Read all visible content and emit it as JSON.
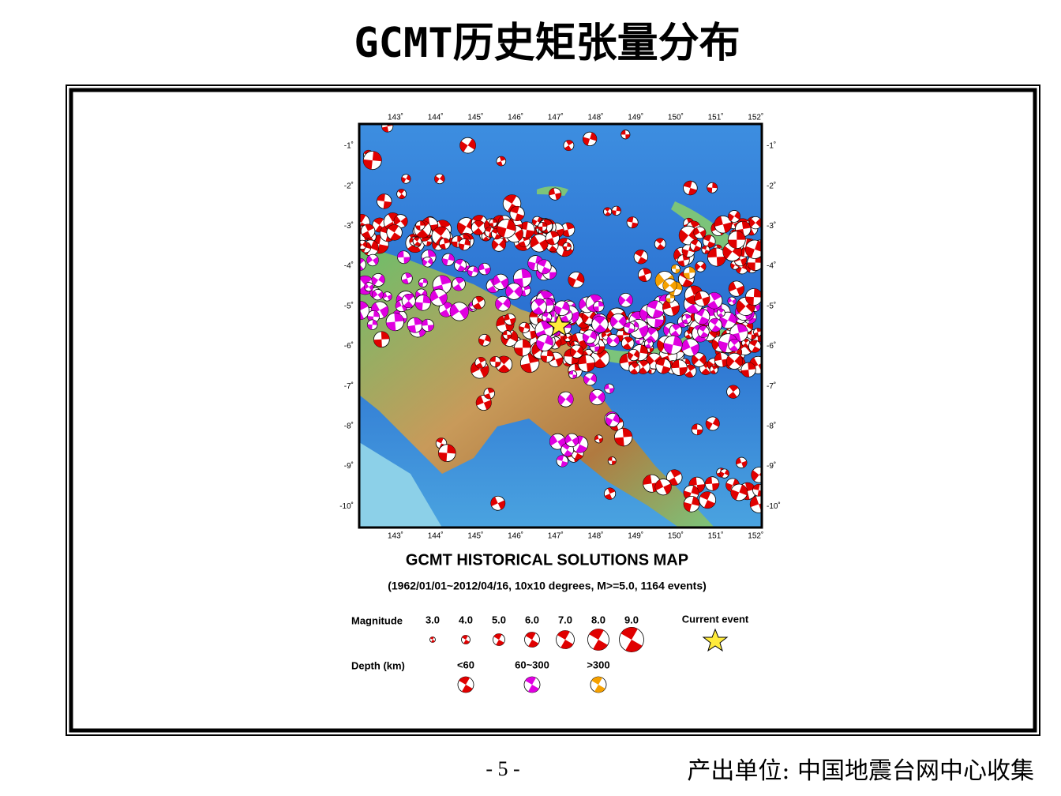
{
  "title": "GCMT历史矩张量分布",
  "map": {
    "lon_labels": [
      "143˚",
      "144˚",
      "145˚",
      "146˚",
      "147˚",
      "148˚",
      "149˚",
      "150˚",
      "151˚",
      "152˚"
    ],
    "lat_labels": [
      "-1˚",
      "-2˚",
      "-3˚",
      "-4˚",
      "-5˚",
      "-6˚",
      "-7˚",
      "-8˚",
      "-9˚",
      "-10˚"
    ],
    "title": "GCMT HISTORICAL SOLUTIONS MAP",
    "subtitle": "(1962/01/01~2012/04/16, 10x10 degrees, M>=5.0, 1164 events)",
    "legend": {
      "magnitude_label": "Magnitude",
      "magnitudes": [
        "3.0",
        "4.0",
        "5.0",
        "6.0",
        "7.0",
        "8.0",
        "9.0"
      ],
      "current_event": "Current event",
      "depth_label": "Depth (km)",
      "depths": [
        "<60",
        "60~300",
        ">300"
      ]
    }
  },
  "footer": {
    "page": "- 5 -",
    "source": "产出单位: 中国地震台网中心收集"
  }
}
